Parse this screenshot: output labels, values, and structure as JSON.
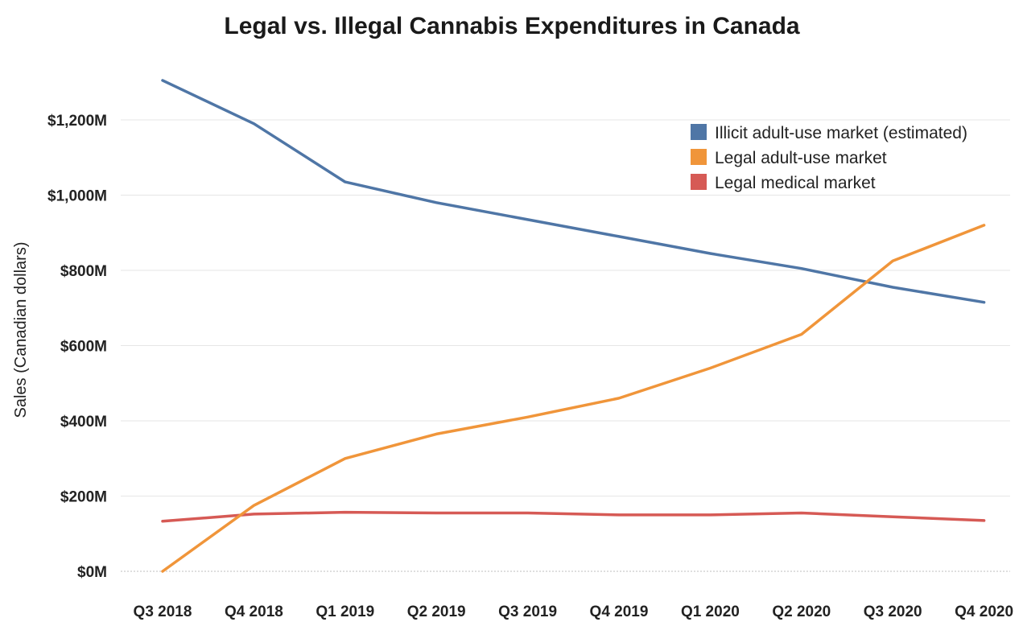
{
  "chart_data": {
    "type": "line",
    "title": "Legal vs. Illegal Cannabis Expenditures in Canada",
    "xlabel": "",
    "ylabel": "Sales (Canadian dollars)",
    "categories": [
      "Q3 2018",
      "Q4 2018",
      "Q1 2019",
      "Q2 2019",
      "Q3 2019",
      "Q4 2019",
      "Q1 2020",
      "Q2 2020",
      "Q3 2020",
      "Q4 2020"
    ],
    "ylim": [
      0,
      1200
    ],
    "yticks": [
      0,
      200,
      400,
      600,
      800,
      1000,
      1200
    ],
    "ytick_labels": [
      "$0M",
      "$200M",
      "$400M",
      "$600M",
      "$800M",
      "$1,000M",
      "$1,200M"
    ],
    "grid": true,
    "legend_position": "top-right",
    "series": [
      {
        "name": "Illicit adult-use market (estimated)",
        "color": "#4f76a6",
        "values": [
          1305,
          1190,
          1035,
          980,
          935,
          890,
          845,
          805,
          755,
          715
        ]
      },
      {
        "name": "Legal adult-use market",
        "color": "#f0953a",
        "values": [
          0,
          175,
          300,
          365,
          410,
          460,
          540,
          630,
          825,
          920
        ]
      },
      {
        "name": "Legal medical market",
        "color": "#d65a55",
        "values": [
          133,
          152,
          157,
          155,
          155,
          150,
          150,
          155,
          145,
          135
        ]
      }
    ]
  }
}
